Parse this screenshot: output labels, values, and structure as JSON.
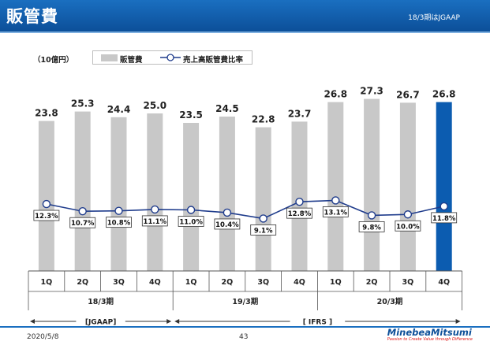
{
  "header": {
    "title": "販管費",
    "note": "18/3期はJGAAP"
  },
  "chart_data": {
    "type": "bar",
    "unit_label": "（10億円）",
    "categories": [
      "1Q",
      "2Q",
      "3Q",
      "4Q",
      "1Q",
      "2Q",
      "3Q",
      "4Q",
      "1Q",
      "2Q",
      "3Q",
      "4Q"
    ],
    "series": [
      {
        "name": "販管費",
        "type": "bar",
        "values": [
          23.8,
          25.3,
          24.4,
          25.0,
          23.5,
          24.5,
          22.8,
          23.7,
          26.8,
          27.3,
          26.7,
          26.8
        ],
        "labels": [
          "23.8",
          "25.3",
          "24.4",
          "25.0",
          "23.5",
          "24.5",
          "22.8",
          "23.7",
          "26.8",
          "27.3",
          "26.7",
          "26.8"
        ],
        "color": "#c8c8c8",
        "highlight_color": "#0c5cb0",
        "highlight_index": 11
      },
      {
        "name": "売上高販管費比率",
        "type": "line",
        "values": [
          12.3,
          10.7,
          10.8,
          11.1,
          11.0,
          10.4,
          9.1,
          12.8,
          13.1,
          9.8,
          10.0,
          11.8
        ],
        "labels": [
          "12.3%",
          "10.7%",
          "10.8%",
          "11.1%",
          "11.0%",
          "10.4%",
          "9.1%",
          "12.8%",
          "13.1%",
          "9.8%",
          "10.0%",
          "11.8%"
        ],
        "color": "#1f3c8c"
      }
    ],
    "groups": [
      {
        "label": "18/3期",
        "count": 4
      },
      {
        "label": "19/3期",
        "count": 4
      },
      {
        "label": "20/3期",
        "count": 4
      }
    ],
    "standards": [
      {
        "label": "[JGAAP]",
        "count": 4
      },
      {
        "label": "[ IFRS ]",
        "count": 8
      }
    ]
  },
  "footer": {
    "date": "2020/5/8",
    "page": "43",
    "logo_name": "MinebeaMitsumi",
    "logo_tagline": "Passion to Create Value through Difference"
  },
  "colors": {
    "header": "#0c4f99",
    "accent": "#1a6fc0",
    "bar": "#c8c8c8",
    "bar_highlight": "#0c5cb0",
    "line": "#1f3c8c"
  }
}
